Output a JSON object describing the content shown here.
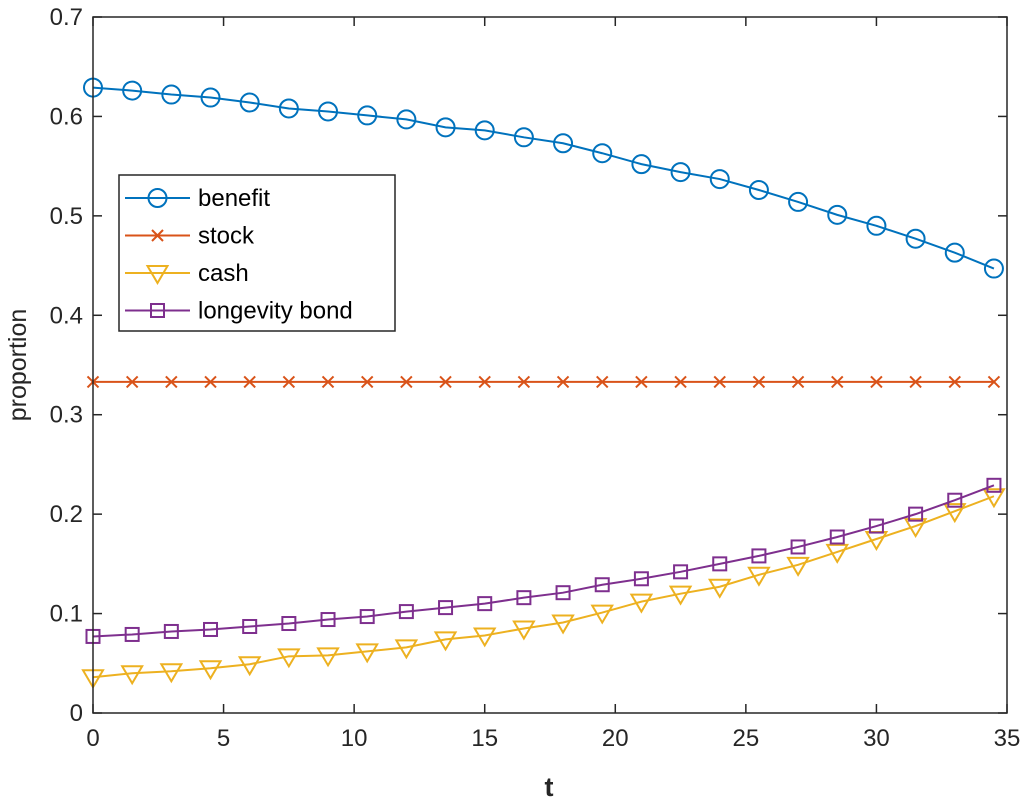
{
  "chart_data": {
    "type": "line",
    "xlabel": "t",
    "ylabel": "proportion",
    "xlim": [
      0,
      35
    ],
    "ylim": [
      0,
      0.7
    ],
    "xticks": [
      0,
      5,
      10,
      15,
      20,
      25,
      30,
      35
    ],
    "yticks": [
      0,
      0.1,
      0.2,
      0.3,
      0.4,
      0.5,
      0.6,
      0.7
    ],
    "xtick_labels": [
      "0",
      "5",
      "10",
      "15",
      "20",
      "25",
      "30",
      "35"
    ],
    "ytick_labels": [
      "0",
      "0.1",
      "0.2",
      "0.3",
      "0.4",
      "0.5",
      "0.6",
      "0.7"
    ],
    "grid": false,
    "legend_position": "upper-left",
    "x": [
      0,
      1.5,
      3,
      4.5,
      6,
      7.5,
      9,
      10.5,
      12,
      13.5,
      15,
      16.5,
      18,
      19.5,
      21,
      22.5,
      24,
      25.5,
      27,
      28.5,
      30,
      31.5,
      33,
      34.5
    ],
    "series": [
      {
        "name": "benefit",
        "color": "#0072BD",
        "marker": "circle",
        "values": [
          0.629,
          0.626,
          0.622,
          0.619,
          0.614,
          0.608,
          0.605,
          0.601,
          0.597,
          0.589,
          0.586,
          0.579,
          0.573,
          0.563,
          0.552,
          0.544,
          0.537,
          0.526,
          0.514,
          0.501,
          0.49,
          0.477,
          0.463,
          0.447
        ]
      },
      {
        "name": "stock",
        "color": "#D95319",
        "marker": "x",
        "values": [
          0.333,
          0.333,
          0.333,
          0.333,
          0.333,
          0.333,
          0.333,
          0.333,
          0.333,
          0.333,
          0.333,
          0.333,
          0.333,
          0.333,
          0.333,
          0.333,
          0.333,
          0.333,
          0.333,
          0.333,
          0.333,
          0.333,
          0.333,
          0.333
        ]
      },
      {
        "name": "cash",
        "color": "#EDB120",
        "marker": "triangle-down",
        "values": [
          0.036,
          0.04,
          0.042,
          0.045,
          0.049,
          0.057,
          0.058,
          0.062,
          0.066,
          0.074,
          0.078,
          0.085,
          0.091,
          0.101,
          0.112,
          0.12,
          0.127,
          0.139,
          0.149,
          0.162,
          0.175,
          0.188,
          0.203,
          0.218
        ]
      },
      {
        "name": "longevity bond",
        "color": "#7E2F8E",
        "marker": "square",
        "values": [
          0.077,
          0.079,
          0.082,
          0.084,
          0.087,
          0.09,
          0.094,
          0.097,
          0.102,
          0.106,
          0.11,
          0.116,
          0.121,
          0.129,
          0.135,
          0.142,
          0.15,
          0.158,
          0.167,
          0.177,
          0.188,
          0.2,
          0.214,
          0.229
        ]
      }
    ]
  }
}
